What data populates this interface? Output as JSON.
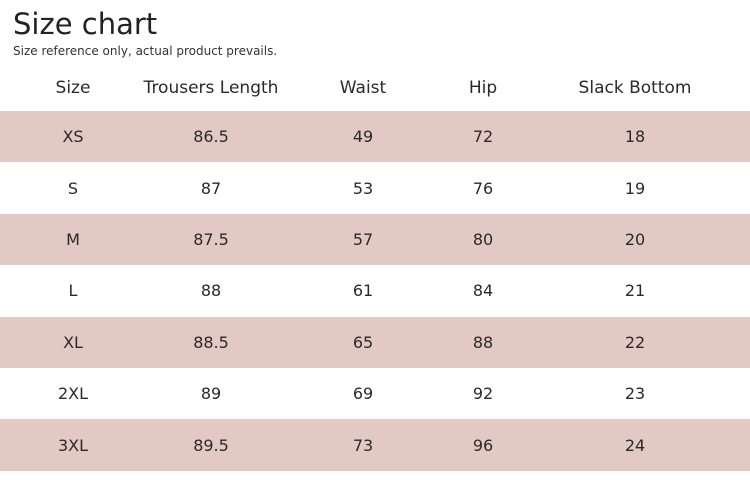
{
  "header": {
    "title": "Size chart",
    "subtitle": "Size reference only, actual product prevails."
  },
  "table": {
    "columns": [
      "Size",
      "Trousers Length",
      "Waist",
      "Hip",
      "Slack Bottom"
    ],
    "rows": [
      [
        "XS",
        "86.5",
        "49",
        "72",
        "18"
      ],
      [
        "S",
        "87",
        "53",
        "76",
        "19"
      ],
      [
        "M",
        "87.5",
        "57",
        "80",
        "20"
      ],
      [
        "L",
        "88",
        "61",
        "84",
        "21"
      ],
      [
        "XL",
        "88.5",
        "65",
        "88",
        "22"
      ],
      [
        "2XL",
        "89",
        "69",
        "92",
        "23"
      ],
      [
        "3XL",
        "89.5",
        "73",
        "96",
        "24"
      ]
    ]
  }
}
